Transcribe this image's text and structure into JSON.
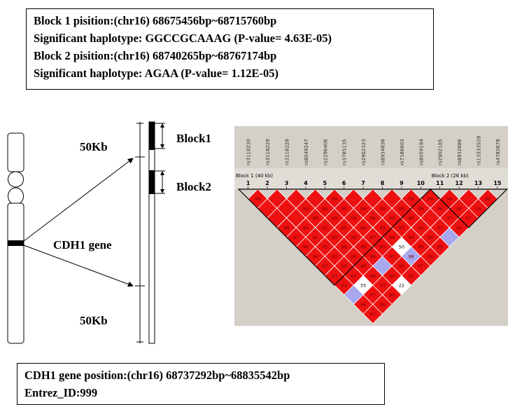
{
  "header_box": {
    "lines": [
      "Block 1 pisition:(chr16) 68675456bp~68715760bp",
      "Significant haplotype: GGCCGCAAAG (P-value= 4.63E-05)",
      "Block 2 pisition:(chr16) 68740265bp~68767174bp",
      "Significant haplotype: AGAA (P-value= 1.12E-05)"
    ]
  },
  "diagram": {
    "upper_flank_label": "50Kb",
    "lower_flank_label": "50Kb",
    "gene_label": "CDH1 gene",
    "block1_label": "Block1",
    "block2_label": "Block2"
  },
  "ld_plot": {
    "snps": [
      "rs3118230",
      "rs3118229",
      "rs3118228",
      "rs8049247",
      "rs2296406",
      "rs3785135",
      "rs2902323",
      "rs8934838",
      "rs7186603",
      "rs8059194",
      "rs2902185",
      "rs8932686",
      "rs13333528",
      "rs4783678"
    ],
    "indices": [
      "1",
      "2",
      "3",
      "4",
      "5",
      "6",
      "7",
      "8",
      "9",
      "10",
      "11",
      "12",
      "13",
      "15"
    ],
    "block1_title": "Block 1 (40 kb)",
    "block2_title": "Block 2 (26 kb)",
    "colors": {
      "strong": "#ee1111",
      "weak": "#a8a8ee",
      "white": "#ffffff",
      "panel": "#d4d0c8"
    },
    "cells": [
      {
        "i": 1,
        "j": 2,
        "v": "99"
      },
      {
        "i": 2,
        "j": 3,
        "v": ""
      },
      {
        "i": 3,
        "j": 4,
        "v": ""
      },
      {
        "i": 4,
        "j": 5,
        "v": ""
      },
      {
        "i": 5,
        "j": 6,
        "v": "99"
      },
      {
        "i": 6,
        "j": 7,
        "v": ""
      },
      {
        "i": 7,
        "j": 8,
        "v": ""
      },
      {
        "i": 8,
        "j": 9,
        "v": ""
      },
      {
        "i": 9,
        "j": 10,
        "v": "99"
      },
      {
        "i": 10,
        "j": 11,
        "v": "99"
      },
      {
        "i": 11,
        "j": 12,
        "v": "96"
      },
      {
        "i": 12,
        "j": 13,
        "v": ""
      },
      {
        "i": 13,
        "j": 14,
        "v": "99"
      },
      {
        "i": 1,
        "j": 3,
        "v": ""
      },
      {
        "i": 2,
        "j": 4,
        "v": ""
      },
      {
        "i": 3,
        "j": 5,
        "v": "99"
      },
      {
        "i": 4,
        "j": 6,
        "v": "99"
      },
      {
        "i": 5,
        "j": 7,
        "v": "99"
      },
      {
        "i": 6,
        "j": 8,
        "v": "99"
      },
      {
        "i": 7,
        "j": 9,
        "v": "99"
      },
      {
        "i": 8,
        "j": 10,
        "v": "99"
      },
      {
        "i": 9,
        "j": 11,
        "v": "98"
      },
      {
        "i": 10,
        "j": 12,
        "v": "96"
      },
      {
        "i": 11,
        "j": 13,
        "v": "99"
      },
      {
        "i": 12,
        "j": 14,
        "v": "58"
      },
      {
        "i": 1,
        "j": 4,
        "v": ""
      },
      {
        "i": 2,
        "j": 5,
        "v": ""
      },
      {
        "i": 3,
        "j": 6,
        "v": "98"
      },
      {
        "i": 4,
        "j": 7,
        "v": "99"
      },
      {
        "i": 5,
        "j": 8,
        "v": "99"
      },
      {
        "i": 6,
        "j": 9,
        "v": "99"
      },
      {
        "i": 7,
        "j": 10,
        "v": "99"
      },
      {
        "i": 8,
        "j": 11,
        "v": "99"
      },
      {
        "i": 9,
        "j": 12,
        "v": ""
      },
      {
        "i": 10,
        "j": 13,
        "v": "97"
      },
      {
        "i": 11,
        "j": 14,
        "v": "97"
      },
      {
        "i": 1,
        "j": 5,
        "v": "99"
      },
      {
        "i": 2,
        "j": 6,
        "v": "98"
      },
      {
        "i": 3,
        "j": 7,
        "v": "97"
      },
      {
        "i": 4,
        "j": 8,
        "v": "99"
      },
      {
        "i": 5,
        "j": 9,
        "v": "98"
      },
      {
        "i": 6,
        "j": 10,
        "v": "99"
      },
      {
        "i": 7,
        "j": 11,
        "v": "97"
      },
      {
        "i": 8,
        "j": 12,
        "v": "99"
      },
      {
        "i": 9,
        "j": 13,
        "v": "97"
      },
      {
        "i": 10,
        "j": 14,
        "v": "94"
      },
      {
        "i": 1,
        "j": 6,
        "v": "97"
      },
      {
        "i": 2,
        "j": 7,
        "v": "91"
      },
      {
        "i": 3,
        "j": 8,
        "v": "99"
      },
      {
        "i": 4,
        "j": 9,
        "v": "99"
      },
      {
        "i": 5,
        "j": 10,
        "v": "97"
      },
      {
        "i": 6,
        "j": 11,
        "v": "99"
      },
      {
        "i": 7,
        "j": 12,
        "v": "99"
      },
      {
        "i": 8,
        "j": 13,
        "v": "99"
      },
      {
        "i": 9,
        "j": 14,
        "v": ""
      },
      {
        "i": 1,
        "j": 7,
        "v": "96"
      },
      {
        "i": 2,
        "j": 8,
        "v": "95"
      },
      {
        "i": 3,
        "j": 9,
        "v": "99"
      },
      {
        "i": 4,
        "j": 10,
        "v": "99"
      },
      {
        "i": 5,
        "j": 11,
        "v": "99"
      },
      {
        "i": 6,
        "j": 12,
        "v": "50"
      },
      {
        "i": 7,
        "j": 13,
        "v": "99"
      },
      {
        "i": 8,
        "j": 14,
        "v": "99"
      },
      {
        "i": 1,
        "j": 8,
        "v": "96"
      },
      {
        "i": 2,
        "j": 9,
        "v": "97"
      },
      {
        "i": 3,
        "j": 10,
        "v": "99"
      },
      {
        "i": 4,
        "j": 11,
        "v": "98"
      },
      {
        "i": 5,
        "j": 12,
        "v": "97"
      },
      {
        "i": 6,
        "j": 13,
        "v": "98"
      },
      {
        "i": 7,
        "j": 14,
        "v": "98"
      },
      {
        "i": 1,
        "j": 9,
        "v": "97"
      },
      {
        "i": 2,
        "j": 10,
        "v": "98"
      },
      {
        "i": 3,
        "j": 11,
        "v": "98"
      },
      {
        "i": 4,
        "j": 12,
        "v": ""
      },
      {
        "i": 5,
        "j": 13,
        "v": "96"
      },
      {
        "i": 6,
        "j": 14,
        "v": "97"
      },
      {
        "i": 1,
        "j": 10,
        "v": "97"
      },
      {
        "i": 2,
        "j": 11,
        "v": "83"
      },
      {
        "i": 3,
        "j": 12,
        "v": "98"
      },
      {
        "i": 4,
        "j": 13,
        "v": "95"
      },
      {
        "i": 5,
        "j": 14,
        "v": "95"
      },
      {
        "i": 1,
        "j": 11,
        "v": "94"
      },
      {
        "i": 2,
        "j": 12,
        "v": "55"
      },
      {
        "i": 3,
        "j": 13,
        "v": "93"
      },
      {
        "i": 4,
        "j": 14,
        "v": "22"
      },
      {
        "i": 1,
        "j": 12,
        "v": ""
      },
      {
        "i": 2,
        "j": 13,
        "v": "87"
      },
      {
        "i": 3,
        "j": 14,
        "v": "96"
      },
      {
        "i": 1,
        "j": 13,
        "v": "96"
      },
      {
        "i": 2,
        "j": 14,
        "v": "96"
      },
      {
        "i": 1,
        "j": 14,
        "v": "97"
      }
    ],
    "weak_cells": [
      [
        4,
        12
      ],
      [
        6,
        13
      ],
      [
        9,
        14
      ],
      [
        1,
        12
      ]
    ],
    "white_cells": [
      [
        6,
        12
      ],
      [
        2,
        12
      ],
      [
        4,
        14
      ]
    ]
  },
  "footer_box": {
    "lines": [
      "CDH1 gene position:(chr16) 68737292bp~68835542bp",
      "Entrez_ID:999"
    ]
  }
}
